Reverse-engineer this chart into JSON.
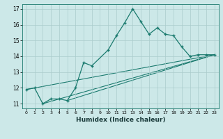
{
  "xlabel": "Humidex (Indice chaleur)",
  "bg_color": "#cce8e8",
  "grid_color": "#aacccc",
  "line_color": "#1a7a6e",
  "xlim": [
    -0.5,
    23.5
  ],
  "ylim": [
    10.7,
    17.3
  ],
  "yticks": [
    11,
    12,
    13,
    14,
    15,
    16,
    17
  ],
  "xticks": [
    0,
    1,
    2,
    3,
    4,
    5,
    6,
    7,
    8,
    9,
    10,
    11,
    12,
    13,
    14,
    15,
    16,
    17,
    18,
    19,
    20,
    21,
    22,
    23
  ],
  "series_main": {
    "x": [
      0,
      1,
      2,
      3,
      4,
      5,
      6,
      7,
      8,
      10,
      11,
      12,
      13,
      14,
      15,
      16,
      17,
      18,
      19,
      20,
      21,
      22,
      23
    ],
    "y": [
      11.9,
      12.0,
      11.0,
      11.3,
      11.3,
      11.2,
      12.0,
      13.6,
      13.4,
      14.4,
      15.3,
      16.1,
      17.0,
      16.2,
      15.4,
      15.8,
      15.4,
      15.3,
      14.6,
      14.0,
      14.1,
      14.1,
      14.1
    ]
  },
  "series_lines": [
    {
      "x": [
        0,
        23
      ],
      "y": [
        11.9,
        14.1
      ]
    },
    {
      "x": [
        2,
        23
      ],
      "y": [
        11.0,
        14.1
      ]
    },
    {
      "x": [
        5,
        23
      ],
      "y": [
        11.2,
        14.1
      ]
    }
  ]
}
